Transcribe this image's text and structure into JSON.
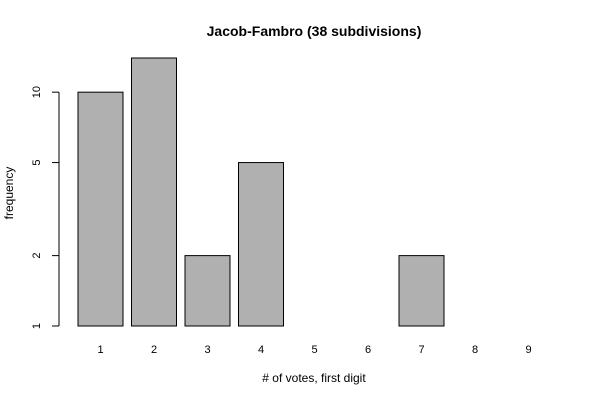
{
  "chart_data": {
    "type": "bar",
    "title": "Jacob-Fambro (38 subdivisions)",
    "xlabel": "# of votes, first digit",
    "ylabel": "frequency",
    "categories": [
      "1",
      "2",
      "3",
      "4",
      "5",
      "6",
      "7",
      "8",
      "9"
    ],
    "values": [
      10,
      14,
      2,
      5,
      1,
      1,
      2,
      0,
      0
    ],
    "y_scale": "log",
    "ylim": [
      1,
      14
    ],
    "y_ticks": [
      1,
      2,
      5,
      10
    ],
    "y_tick_labels": [
      "1",
      "2",
      "5",
      "10"
    ],
    "bar_color": "#b0b0b0",
    "grid": false,
    "legend": "none"
  }
}
